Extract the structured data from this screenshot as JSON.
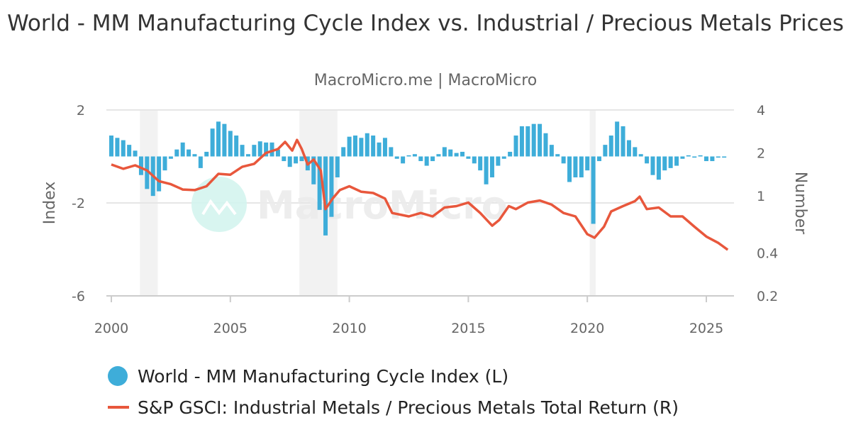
{
  "chart_data": {
    "type": "bar+line",
    "title": "World - MM Manufacturing Cycle Index vs. Industrial / Precious Metals Prices",
    "subtitle": "MacroMicro.me | MacroMicro",
    "watermark": "MacroMicro",
    "xlabel": "",
    "x_ticks": [
      "2000",
      "2005",
      "2010",
      "2015",
      "2020",
      "2025"
    ],
    "xlim": [
      2000,
      2026.1
    ],
    "y_left": {
      "label": "Index",
      "ticks": [
        "2",
        "-2",
        "-6"
      ],
      "range": [
        -6,
        2
      ],
      "scale": "linear"
    },
    "y_right": {
      "label": "Number",
      "ticks": [
        "4",
        "2",
        "1",
        "0.4",
        "0.2"
      ],
      "range": [
        0.2,
        4
      ],
      "scale": "log"
    },
    "grid": true,
    "recessions": [
      [
        2001.2,
        2001.95
      ],
      [
        2007.9,
        2009.5
      ],
      [
        2020.1,
        2020.35
      ]
    ],
    "legend_position": "bottom",
    "series": [
      {
        "name": "World - MM Manufacturing Cycle Index (L)",
        "type": "bar",
        "axis": "left",
        "color": "#3eadd9",
        "x": [
          2000.0,
          2000.25,
          2000.5,
          2000.75,
          2001.0,
          2001.25,
          2001.5,
          2001.75,
          2002.0,
          2002.25,
          2002.5,
          2002.75,
          2003.0,
          2003.25,
          2003.5,
          2003.75,
          2004.0,
          2004.25,
          2004.5,
          2004.75,
          2005.0,
          2005.25,
          2005.5,
          2005.75,
          2006.0,
          2006.25,
          2006.5,
          2006.75,
          2007.0,
          2007.25,
          2007.5,
          2007.75,
          2008.0,
          2008.25,
          2008.5,
          2008.75,
          2009.0,
          2009.25,
          2009.5,
          2009.75,
          2010.0,
          2010.25,
          2010.5,
          2010.75,
          2011.0,
          2011.25,
          2011.5,
          2011.75,
          2012.0,
          2012.25,
          2012.5,
          2012.75,
          2013.0,
          2013.25,
          2013.5,
          2013.75,
          2014.0,
          2014.25,
          2014.5,
          2014.75,
          2015.0,
          2015.25,
          2015.5,
          2015.75,
          2016.0,
          2016.25,
          2016.5,
          2016.75,
          2017.0,
          2017.25,
          2017.5,
          2017.75,
          2018.0,
          2018.25,
          2018.5,
          2018.75,
          2019.0,
          2019.25,
          2019.5,
          2019.75,
          2020.0,
          2020.25,
          2020.5,
          2020.75,
          2021.0,
          2021.25,
          2021.5,
          2021.75,
          2022.0,
          2022.25,
          2022.5,
          2022.75,
          2023.0,
          2023.25,
          2023.5,
          2023.75,
          2024.0,
          2024.25,
          2024.5,
          2024.75,
          2025.0,
          2025.25,
          2025.5,
          2025.75
        ],
        "values": [
          0.9,
          0.8,
          0.7,
          0.5,
          0.25,
          -0.8,
          -1.4,
          -1.7,
          -1.5,
          -0.6,
          -0.1,
          0.3,
          0.6,
          0.3,
          0.1,
          -0.5,
          0.2,
          1.2,
          1.5,
          1.4,
          1.1,
          0.9,
          0.5,
          0.1,
          0.5,
          0.65,
          0.6,
          0.6,
          0.3,
          -0.2,
          -0.45,
          -0.3,
          -0.2,
          -0.6,
          -1.2,
          -2.3,
          -3.4,
          -2.6,
          -0.9,
          0.4,
          0.85,
          0.9,
          0.8,
          1.0,
          0.9,
          0.6,
          0.8,
          0.4,
          -0.1,
          -0.3,
          0.05,
          0.1,
          -0.2,
          -0.4,
          -0.2,
          0.1,
          0.4,
          0.3,
          0.15,
          0.2,
          -0.1,
          -0.3,
          -0.6,
          -1.2,
          -0.9,
          -0.4,
          -0.1,
          0.2,
          0.9,
          1.3,
          1.3,
          1.4,
          1.4,
          1.0,
          0.5,
          0.1,
          -0.3,
          -1.1,
          -0.9,
          -0.9,
          -0.6,
          -2.9,
          -0.2,
          0.5,
          0.9,
          1.5,
          1.3,
          0.7,
          0.4,
          0.1,
          -0.3,
          -0.8,
          -1.0,
          -0.6,
          -0.5,
          -0.4,
          -0.1,
          0.05,
          -0.05,
          0.05,
          -0.2,
          -0.2,
          -0.05,
          -0.05
        ]
      },
      {
        "name": "S&P GSCI: Industrial Metals / Precious Metals Total Return (R)",
        "type": "line",
        "axis": "right",
        "color": "#e8573c",
        "x": [
          2000.0,
          2000.5,
          2001.0,
          2001.5,
          2002.0,
          2002.5,
          2003.0,
          2003.5,
          2004.0,
          2004.5,
          2005.0,
          2005.5,
          2006.0,
          2006.5,
          2007.0,
          2007.3,
          2007.6,
          2007.8,
          2008.0,
          2008.25,
          2008.5,
          2008.8,
          2009.0,
          2009.3,
          2009.6,
          2010.0,
          2010.5,
          2011.0,
          2011.5,
          2011.8,
          2012.5,
          2013.0,
          2013.5,
          2014.0,
          2014.5,
          2015.0,
          2015.5,
          2016.0,
          2016.3,
          2016.7,
          2017.0,
          2017.5,
          2018.0,
          2018.5,
          2019.0,
          2019.5,
          2020.0,
          2020.3,
          2020.7,
          2021.0,
          2021.5,
          2022.0,
          2022.2,
          2022.5,
          2023.0,
          2023.5,
          2024.0,
          2024.5,
          2025.0,
          2025.5,
          2025.9
        ],
        "values": [
          1.66,
          1.55,
          1.64,
          1.51,
          1.27,
          1.21,
          1.11,
          1.1,
          1.17,
          1.43,
          1.41,
          1.6,
          1.68,
          2.0,
          2.13,
          2.39,
          2.08,
          2.47,
          2.13,
          1.66,
          1.8,
          1.51,
          0.81,
          0.96,
          1.1,
          1.17,
          1.07,
          1.05,
          0.96,
          0.76,
          0.72,
          0.76,
          0.72,
          0.83,
          0.85,
          0.9,
          0.76,
          0.62,
          0.68,
          0.85,
          0.81,
          0.9,
          0.93,
          0.87,
          0.76,
          0.72,
          0.54,
          0.51,
          0.61,
          0.78,
          0.85,
          0.92,
          0.99,
          0.81,
          0.83,
          0.72,
          0.72,
          0.61,
          0.52,
          0.47,
          0.42
        ]
      }
    ]
  }
}
